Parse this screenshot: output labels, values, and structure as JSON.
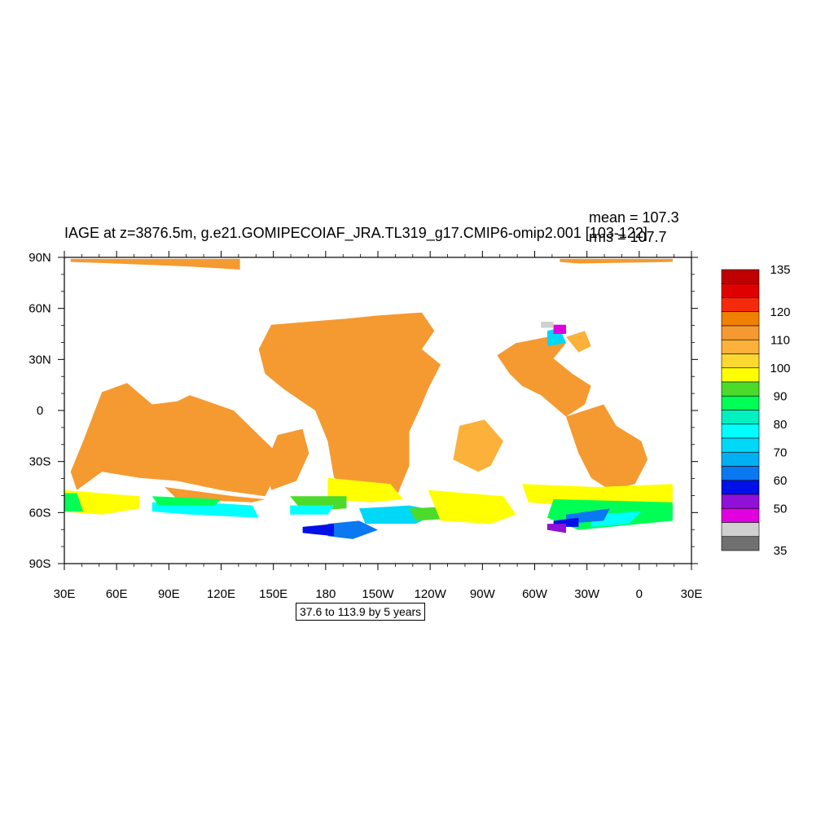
{
  "title": "IAGE at z=3876.5m, g.e21.GOMIPECOIAF_JRA.TL319_g17.CMIP6-omip2.001 [103-122]",
  "stats": {
    "mean": "mean = 107.3",
    "rms": "rms = 107.7"
  },
  "contour_info": "37.6 to 113.9 by 5 years",
  "chart_data": {
    "type": "heatmap",
    "variable": "IAGE",
    "depth": "z=3876.5m",
    "x_ticks": [
      "30E",
      "60E",
      "90E",
      "120E",
      "150E",
      "180",
      "150W",
      "120W",
      "90W",
      "60W",
      "30W",
      "0",
      "30E"
    ],
    "y_ticks": [
      "90N",
      "60N",
      "30N",
      "0",
      "30S",
      "60S",
      "90S"
    ],
    "x_range_deg_east": [
      30,
      390
    ],
    "y_range_deg_north": [
      -90,
      90
    ],
    "colorbar": {
      "labels": [
        "135",
        "120",
        "110",
        "100",
        "90",
        "80",
        "70",
        "60",
        "50",
        "35"
      ],
      "colors": [
        "#c00000",
        "#e00000",
        "#f52a0a",
        "#f08000",
        "#f59a30",
        "#fbb13a",
        "#fdd830",
        "#ffff00",
        "#4cdb2a",
        "#00ff55",
        "#00f0c0",
        "#00ffff",
        "#00d8f8",
        "#00b0f0",
        "#0a78f0",
        "#0010e8",
        "#9010d8",
        "#e000e0",
        "#d0d0d0",
        "#707070"
      ]
    },
    "ocean_colors": {
      "interior": "#f59a30",
      "edge_light": "#fbb13a",
      "subpolar": "#ffff00",
      "green": "#4cdb2a",
      "bright_green": "#00ff55",
      "cyan": "#00ffff",
      "light_blue": "#00d8f8",
      "blue": "#0a78f0",
      "deep_blue": "#0010e8",
      "purple": "#9010d8",
      "magenta": "#e000e0",
      "gray": "#d0d0d0"
    }
  }
}
